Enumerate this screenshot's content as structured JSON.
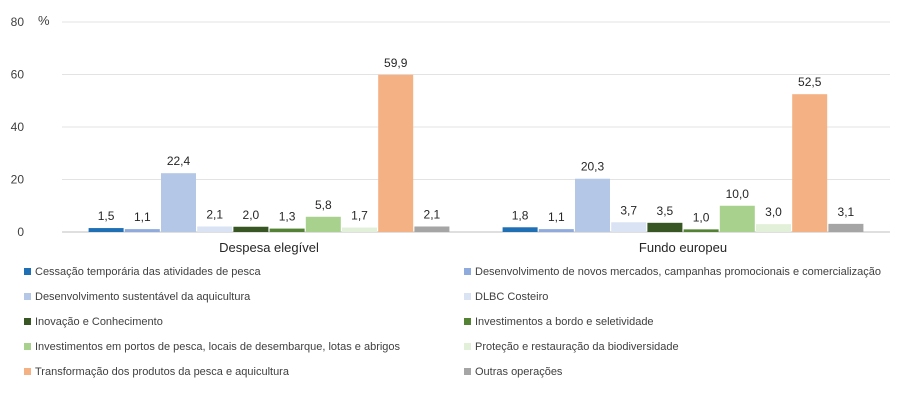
{
  "chart_data": {
    "type": "bar",
    "ylabel": "%",
    "ylim": [
      0,
      80
    ],
    "yticks": [
      0,
      20,
      40,
      60,
      80
    ],
    "grid": true,
    "categories": [
      "Despesa elegível",
      "Fundo europeu"
    ],
    "series": [
      {
        "name": "Cessação temporária das atividades de pesca",
        "color": "#1f6fb5",
        "values": [
          1.5,
          1.8
        ],
        "labels": [
          "1,5",
          "1,8"
        ]
      },
      {
        "name": "Desenvolvimento de novos mercados, campanhas promocionais e comercialização",
        "color": "#8faadc",
        "values": [
          1.1,
          1.1
        ],
        "labels": [
          "1,1",
          "1,1"
        ]
      },
      {
        "name": "Desenvolvimento sustentável da aquicultura",
        "color": "#b4c7e7",
        "values": [
          22.4,
          20.3
        ],
        "labels": [
          "22,4",
          "20,3"
        ]
      },
      {
        "name": "DLBC Costeiro",
        "color": "#dae3f3",
        "values": [
          2.1,
          3.7
        ],
        "labels": [
          "2,1",
          "3,7"
        ]
      },
      {
        "name": "Inovação e Conhecimento",
        "color": "#375623",
        "values": [
          2.0,
          3.5
        ],
        "labels": [
          "2,0",
          "3,5"
        ]
      },
      {
        "name": "Investimentos a bordo e seletividade",
        "color": "#548235",
        "values": [
          1.3,
          1.0
        ],
        "labels": [
          "1,3",
          "1,0"
        ]
      },
      {
        "name": "Investimentos em portos de pesca, locais de desembarque, lotas e abrigos",
        "color": "#a9d18e",
        "values": [
          5.8,
          10.0
        ],
        "labels": [
          "5,8",
          "10,0"
        ]
      },
      {
        "name": "Proteção e restauração da biodiversidade",
        "color": "#e2f0d9",
        "values": [
          1.7,
          3.0
        ],
        "labels": [
          "1,7",
          "3,0"
        ]
      },
      {
        "name": "Transformação dos produtos da pesca e aquicultura",
        "color": "#f4b183",
        "values": [
          59.9,
          52.5
        ],
        "labels": [
          "59,9",
          "52,5"
        ]
      },
      {
        "name": "Outras operações",
        "color": "#a5a5a5",
        "values": [
          2.1,
          3.1
        ],
        "labels": [
          "2,1",
          "3,1"
        ]
      }
    ],
    "legend_position": "bottom"
  }
}
